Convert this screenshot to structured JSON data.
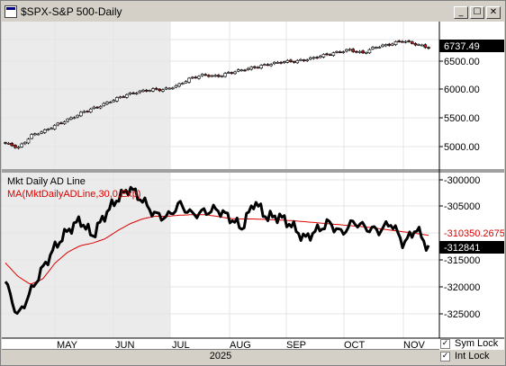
{
  "window": {
    "title": "$SPX-S&P 500-Daily",
    "min_glyph": "_",
    "max_glyph": "☐",
    "close_glyph": "✕"
  },
  "colors": {
    "up_candle": "#ffffff",
    "down_candle": "#cc1111",
    "ad_line": "#000000",
    "ma_line": "#dd0000",
    "shade": "#e8e8e8"
  },
  "price_pane": {
    "current_value_label": "6737.49",
    "y_ticks": [
      "6500.00",
      "6000.00",
      "5500.00",
      "5000.00"
    ]
  },
  "ad_pane": {
    "indicator_label": "Mkt Daily AD Line",
    "ma_label": "MA(MktDailyADLine,30,0,Exp)",
    "ma_value_label": "-310350.2675",
    "ad_value_label": "-312841",
    "y_ticks": [
      "-300000",
      "-305000",
      "-310000",
      "-315000",
      "-320000",
      "-325000"
    ]
  },
  "x_axis": {
    "months": [
      "MAY",
      "JUN",
      "JUL",
      "AUG",
      "SEP",
      "OCT",
      "NOV"
    ],
    "year": "2025"
  },
  "locks": {
    "sym_lock_label": "Sym Lock",
    "int_lock_label": "Int Lock",
    "sym_checked": true,
    "int_checked": true
  },
  "chart_data": [
    {
      "type": "candlestick",
      "title": "$SPX-S&P 500-Daily",
      "y_range": [
        4700,
        6950
      ],
      "series": [
        {
          "name": "$SPX-S&P 500-Daily",
          "close_approx": [
            5060,
            4980,
            5200,
            5280,
            5400,
            5500,
            5620,
            5700,
            5800,
            5900,
            5960,
            6000,
            6000,
            6070,
            6200,
            6260,
            6230,
            6300,
            6350,
            6400,
            6450,
            6490,
            6500,
            6540,
            6600,
            6650,
            6700,
            6640,
            6750,
            6790,
            6860,
            6800,
            6737.49
          ]
        }
      ]
    },
    {
      "type": "line",
      "y_range": [
        -329000,
        -299000
      ],
      "series": [
        {
          "name": "Mkt Daily AD Line",
          "values": [
            -319000,
            -325500,
            -321000,
            -316500,
            -312500,
            -309500,
            -307500,
            -310500,
            -306500,
            -303500,
            -301500,
            -303800,
            -306500,
            -307000,
            -304500,
            -306500,
            -306000,
            -305500,
            -307000,
            -309000,
            -304000,
            -307000,
            -306800,
            -308500,
            -311000,
            -309500,
            -308000,
            -310000,
            -307800,
            -309000,
            -309500,
            -308000,
            -312000,
            -309000,
            -312841
          ]
        },
        {
          "name": "MA(MktDailyADLine,30,0,Exp)",
          "values": [
            -315500,
            -318000,
            -319500,
            -318500,
            -315500,
            -313500,
            -312300,
            -311800,
            -311000,
            -309500,
            -308200,
            -307300,
            -306800,
            -306800,
            -306600,
            -306500,
            -306500,
            -306800,
            -307200,
            -307300,
            -307300,
            -307400,
            -307500,
            -307600,
            -307800,
            -308000,
            -308200,
            -308400,
            -308600,
            -308800,
            -309100,
            -309400,
            -309700,
            -310000,
            -310350.2675
          ]
        }
      ]
    }
  ]
}
